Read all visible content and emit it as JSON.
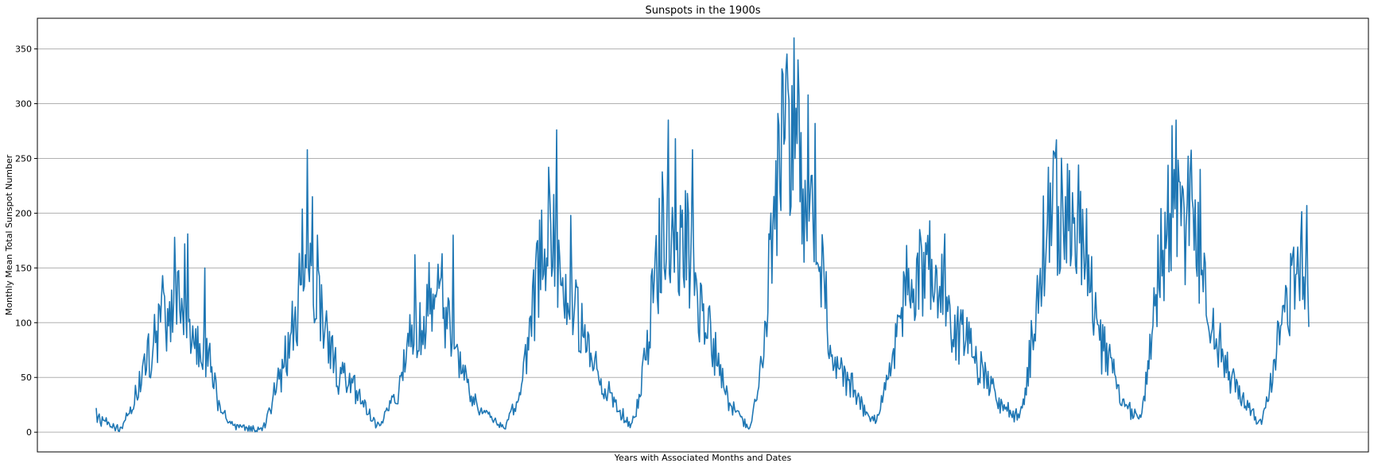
{
  "chart_data": {
    "type": "line",
    "title": "Sunspots in the 1900s",
    "xlabel": "Years with Associated Months and Dates",
    "ylabel": "Monthly Mean Total Sunspot Number",
    "ylim": [
      -18,
      378
    ],
    "yticks": [
      0,
      50,
      100,
      150,
      200,
      250,
      300,
      350
    ],
    "grid": "y-major",
    "x_tick_labels_shown": false,
    "series_color": "#1f77b4",
    "x_start_year": 1900,
    "x_month_step": 1,
    "cycle_anchors": [
      [
        1900.0,
        15
      ],
      [
        1901.0,
        8
      ],
      [
        1901.6,
        3
      ],
      [
        1902.0,
        4
      ],
      [
        1903.0,
        25
      ],
      [
        1904.0,
        60
      ],
      [
        1905.0,
        85
      ],
      [
        1905.6,
        115
      ],
      [
        1906.0,
        100
      ],
      [
        1906.8,
        115
      ],
      [
        1907.3,
        95
      ],
      [
        1908.0,
        80
      ],
      [
        1908.8,
        75
      ],
      [
        1909.5,
        60
      ],
      [
        1910.0,
        30
      ],
      [
        1911.0,
        8
      ],
      [
        1912.0,
        5
      ],
      [
        1913.0,
        3
      ],
      [
        1913.6,
        2
      ],
      [
        1914.0,
        8
      ],
      [
        1915.0,
        45
      ],
      [
        1916.0,
        80
      ],
      [
        1916.8,
        120
      ],
      [
        1917.3,
        200
      ],
      [
        1918.0,
        130
      ],
      [
        1919.0,
        100
      ],
      [
        1920.0,
        55
      ],
      [
        1921.0,
        45
      ],
      [
        1922.0,
        30
      ],
      [
        1923.0,
        10
      ],
      [
        1923.6,
        5
      ],
      [
        1924.0,
        15
      ],
      [
        1925.0,
        40
      ],
      [
        1926.0,
        90
      ],
      [
        1927.0,
        95
      ],
      [
        1928.0,
        125
      ],
      [
        1929.0,
        105
      ],
      [
        1930.0,
        60
      ],
      [
        1931.0,
        35
      ],
      [
        1932.0,
        20
      ],
      [
        1933.0,
        10
      ],
      [
        1933.8,
        4
      ],
      [
        1934.0,
        8
      ],
      [
        1935.0,
        30
      ],
      [
        1936.0,
        95
      ],
      [
        1937.0,
        175
      ],
      [
        1938.0,
        165
      ],
      [
        1938.6,
        150
      ],
      [
        1939.0,
        135
      ],
      [
        1940.0,
        100
      ],
      [
        1941.0,
        65
      ],
      [
        1942.0,
        45
      ],
      [
        1943.0,
        25
      ],
      [
        1944.0,
        10
      ],
      [
        1944.3,
        5
      ],
      [
        1945.0,
        30
      ],
      [
        1946.0,
        110
      ],
      [
        1947.0,
        190
      ],
      [
        1948.0,
        180
      ],
      [
        1949.0,
        170
      ],
      [
        1950.0,
        105
      ],
      [
        1951.0,
        85
      ],
      [
        1952.0,
        40
      ],
      [
        1953.0,
        20
      ],
      [
        1954.0,
        5
      ],
      [
        1954.2,
        3
      ],
      [
        1955.0,
        50
      ],
      [
        1956.0,
        170
      ],
      [
        1957.0,
        280
      ],
      [
        1958.0,
        250
      ],
      [
        1959.0,
        210
      ],
      [
        1960.0,
        155
      ],
      [
        1961.0,
        75
      ],
      [
        1962.0,
        50
      ],
      [
        1963.0,
        35
      ],
      [
        1964.0,
        15
      ],
      [
        1964.8,
        12
      ],
      [
        1965.0,
        20
      ],
      [
        1966.0,
        70
      ],
      [
        1967.0,
        130
      ],
      [
        1968.0,
        140
      ],
      [
        1969.0,
        140
      ],
      [
        1970.0,
        130
      ],
      [
        1971.0,
        95
      ],
      [
        1972.0,
        85
      ],
      [
        1973.0,
        60
      ],
      [
        1974.0,
        45
      ],
      [
        1975.0,
        25
      ],
      [
        1976.0,
        18
      ],
      [
        1976.5,
        12
      ],
      [
        1977.0,
        35
      ],
      [
        1978.0,
        120
      ],
      [
        1979.0,
        210
      ],
      [
        1980.0,
        200
      ],
      [
        1981.0,
        185
      ],
      [
        1982.0,
        170
      ],
      [
        1983.0,
        85
      ],
      [
        1984.0,
        65
      ],
      [
        1985.0,
        25
      ],
      [
        1986.0,
        18
      ],
      [
        1986.6,
        15
      ],
      [
        1987.0,
        40
      ],
      [
        1988.0,
        140
      ],
      [
        1989.0,
        215
      ],
      [
        1990.0,
        200
      ],
      [
        1991.0,
        205
      ],
      [
        1992.0,
        130
      ],
      [
        1993.0,
        80
      ],
      [
        1994.0,
        50
      ],
      [
        1995.0,
        30
      ],
      [
        1996.0,
        15
      ],
      [
        1996.6,
        8
      ],
      [
        1997.0,
        30
      ],
      [
        1998.0,
        80
      ],
      [
        1999.0,
        130
      ],
      [
        2000.0,
        170
      ],
      [
        2000.5,
        115
      ]
    ],
    "peak_overrides": [
      [
        1905.5,
        143
      ],
      [
        1906.5,
        178
      ],
      [
        1907.3,
        172
      ],
      [
        1907.6,
        181
      ],
      [
        1909.0,
        150
      ],
      [
        1917.5,
        258
      ],
      [
        1917.9,
        215
      ],
      [
        1918.3,
        180
      ],
      [
        1926.4,
        162
      ],
      [
        1927.6,
        155
      ],
      [
        1928.7,
        163
      ],
      [
        1929.6,
        180
      ],
      [
        1937.5,
        242
      ],
      [
        1938.2,
        276
      ],
      [
        1939.3,
        198
      ],
      [
        1947.4,
        285
      ],
      [
        1948.0,
        268
      ],
      [
        1949.4,
        258
      ],
      [
        1957.8,
        360
      ],
      [
        1958.2,
        340
      ],
      [
        1959.0,
        308
      ],
      [
        1959.6,
        282
      ],
      [
        1968.0,
        158
      ],
      [
        1969.1,
        193
      ],
      [
        1970.3,
        181
      ],
      [
        1979.6,
        267
      ],
      [
        1980.5,
        245
      ],
      [
        1981.4,
        244
      ],
      [
        1989.5,
        285
      ],
      [
        1990.5,
        252
      ],
      [
        1991.5,
        240
      ],
      [
        2000.3,
        207
      ],
      [
        2000.7,
        188
      ]
    ],
    "noise_amplitude": 0.32
  }
}
